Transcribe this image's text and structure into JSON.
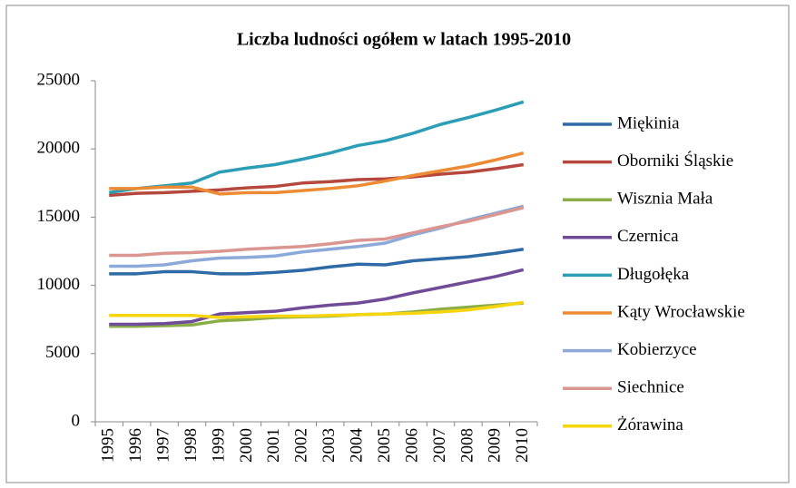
{
  "chart_data": {
    "type": "line",
    "title": "Liczba ludności ogółem w latach 1995-2010",
    "categories": [
      "1995",
      "1996",
      "1997",
      "1998",
      "1999",
      "2000",
      "2001",
      "2002",
      "2003",
      "2004",
      "2005",
      "2006",
      "2007",
      "2008",
      "2009",
      "2010"
    ],
    "ylim": [
      0,
      25000
    ],
    "yticks": [
      0,
      5000,
      10000,
      15000,
      20000,
      25000
    ],
    "grid": false,
    "legend": "right",
    "series": [
      {
        "name": "Miękinia",
        "color": "#2e6aa6",
        "values": [
          10850,
          10850,
          11000,
          11000,
          10850,
          10850,
          10950,
          11100,
          11350,
          11550,
          11500,
          11800,
          11950,
          12100,
          12350,
          12650
        ]
      },
      {
        "name": "Oborniki Śląskie",
        "color": "#b5473d",
        "values": [
          16600,
          16750,
          16800,
          16900,
          17000,
          17150,
          17250,
          17500,
          17600,
          17750,
          17800,
          17950,
          18150,
          18300,
          18550,
          18850
        ]
      },
      {
        "name": "Wisznia Mała",
        "color": "#8aad48",
        "values": [
          7000,
          7000,
          7050,
          7100,
          7400,
          7500,
          7650,
          7700,
          7750,
          7850,
          7900,
          8050,
          8250,
          8400,
          8550,
          8700
        ]
      },
      {
        "name": "Czernica",
        "color": "#704c98",
        "values": [
          7150,
          7150,
          7200,
          7350,
          7900,
          8000,
          8100,
          8350,
          8550,
          8700,
          9000,
          9450,
          9850,
          10250,
          10650,
          11150
        ]
      },
      {
        "name": "Długołęka",
        "color": "#2b9eb5",
        "values": [
          16800,
          17100,
          17300,
          17500,
          18300,
          18600,
          18850,
          19250,
          19700,
          20250,
          20600,
          21150,
          21800,
          22300,
          22850,
          23450
        ]
      },
      {
        "name": "Kąty Wrocławskie",
        "color": "#ec8b33",
        "values": [
          17100,
          17100,
          17200,
          17200,
          16700,
          16800,
          16800,
          16950,
          17100,
          17300,
          17650,
          18050,
          18400,
          18750,
          19200,
          19700
        ]
      },
      {
        "name": "Kobierzyce",
        "color": "#8ca9d9",
        "values": [
          11400,
          11400,
          11500,
          11800,
          12000,
          12050,
          12150,
          12450,
          12650,
          12850,
          13100,
          13700,
          14200,
          14800,
          15300,
          15800
        ]
      },
      {
        "name": "Siechnice",
        "color": "#dc9691",
        "values": [
          12200,
          12200,
          12350,
          12400,
          12500,
          12650,
          12750,
          12850,
          13050,
          13300,
          13400,
          13850,
          14300,
          14700,
          15200,
          15700
        ]
      },
      {
        "name": "Żórawina",
        "color": "#f6d40e",
        "values": [
          7800,
          7800,
          7800,
          7800,
          7650,
          7700,
          7750,
          7750,
          7800,
          7850,
          7900,
          7950,
          8050,
          8200,
          8450,
          8750
        ]
      }
    ]
  }
}
